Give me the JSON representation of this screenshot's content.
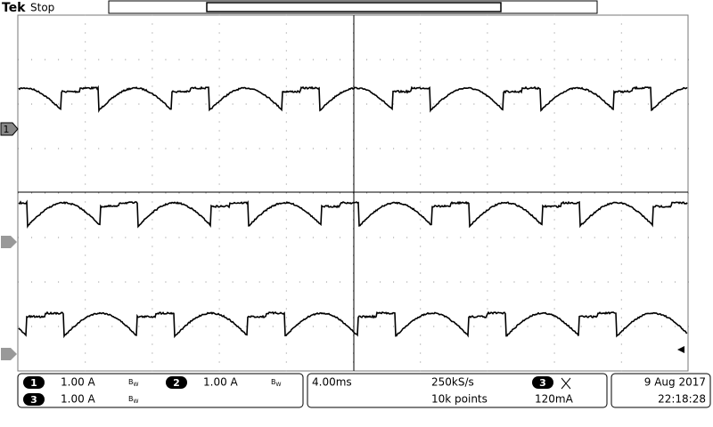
{
  "header": {
    "brand": "Tek",
    "status": "Stop"
  },
  "channel_marker": "1",
  "readout": {
    "channels": [
      {
        "number": "1",
        "scale": "1.00 A",
        "bandwidth": "B",
        "bandwidth_sub": "W"
      },
      {
        "number": "2",
        "scale": "1.00 A",
        "bandwidth": "B",
        "bandwidth_sub": "W"
      },
      {
        "number": "3",
        "scale": "1.00 A",
        "bandwidth": "B",
        "bandwidth_sub": "W"
      }
    ],
    "timebase": "4.00ms",
    "sample_rate": "250kS/s",
    "record_length": "10k points",
    "trigger": {
      "source": "3",
      "level": "120mA"
    },
    "date": "9 Aug 2017",
    "time": "22:18:28"
  }
}
